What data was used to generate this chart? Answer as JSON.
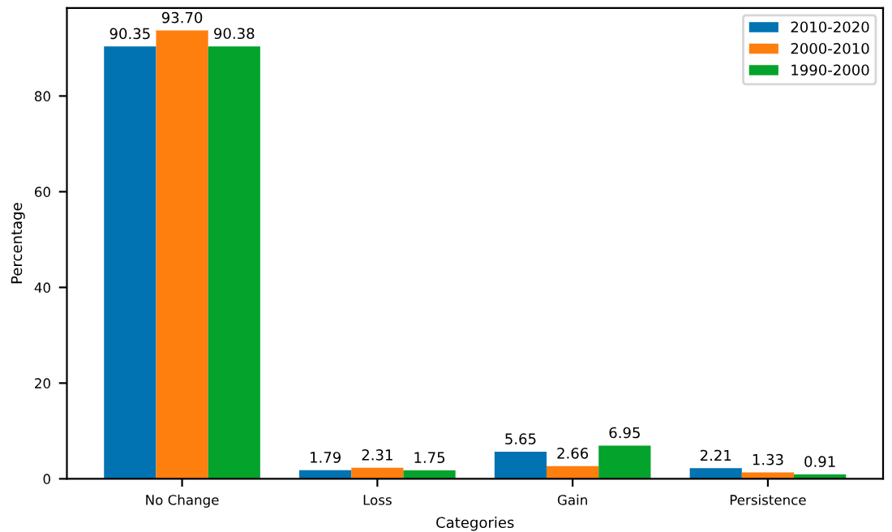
{
  "chart_data": {
    "type": "bar",
    "xlabel": "Categories",
    "ylabel": "Percentage",
    "categories": [
      "No Change",
      "Loss",
      "Gain",
      "Persistence"
    ],
    "series": [
      {
        "name": "2010-2020",
        "color": "#0173b2",
        "values": [
          90.35,
          1.79,
          5.65,
          2.21
        ],
        "value_labels": [
          "90.35",
          "1.79",
          "5.65",
          "2.21"
        ]
      },
      {
        "name": "2000-2010",
        "color": "#ff7f0e",
        "values": [
          93.7,
          2.31,
          2.66,
          1.33
        ],
        "value_labels": [
          "93.70",
          "2.31",
          "2.66",
          "1.33"
        ]
      },
      {
        "name": "1990-2000",
        "color": "#04a32c",
        "values": [
          90.38,
          1.75,
          6.95,
          0.91
        ],
        "value_labels": [
          "90.38",
          "1.75",
          "6.95",
          "0.91"
        ]
      }
    ],
    "ylim": [
      0,
      98.4
    ],
    "yticks": [
      0,
      20,
      40,
      60,
      80
    ],
    "legend": "top right",
    "grid": false
  }
}
